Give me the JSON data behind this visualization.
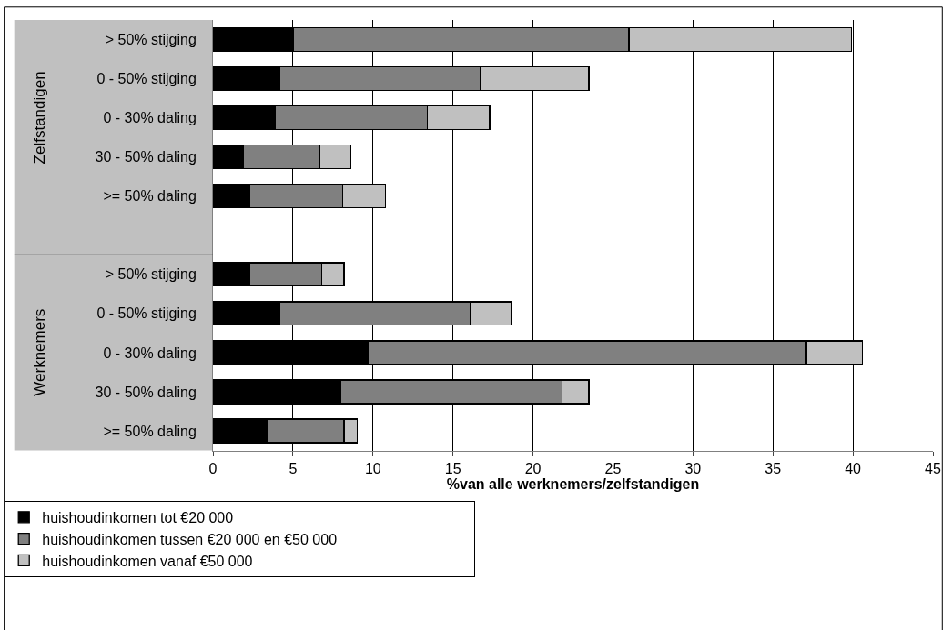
{
  "chart_data": {
    "type": "bar",
    "orientation": "horizontal",
    "stacked": true,
    "categories": [
      "> 50% stijging",
      "0 - 50% stijging",
      "0 - 30% daling",
      "30 - 50% daling",
      ">= 50% daling",
      null,
      "> 50% stijging",
      "0 - 50% stijging",
      "0 - 30% daling",
      "30 - 50% daling",
      ">= 50% daling"
    ],
    "series": [
      {
        "name": "huishoudinkomen tot €20 000",
        "color": "#000000",
        "values": [
          5.0,
          4.2,
          3.9,
          1.9,
          2.3,
          null,
          2.3,
          4.2,
          9.7,
          8.0,
          3.4
        ]
      },
      {
        "name": "huishoudinkomen tussen €20 000 en €50 000",
        "color": "#808080",
        "values": [
          21.0,
          12.5,
          9.5,
          4.8,
          5.8,
          null,
          4.5,
          11.9,
          27.4,
          13.8,
          4.8
        ]
      },
      {
        "name": "huishoudinkomen vanaf €50 000",
        "color": "#c0c0c0",
        "values": [
          13.9,
          6.8,
          3.9,
          1.9,
          2.7,
          null,
          1.4,
          2.6,
          3.5,
          1.7,
          0.8
        ]
      }
    ],
    "xlim": [
      0,
      45
    ],
    "xticks": [
      0,
      5,
      10,
      15,
      20,
      25,
      30,
      35,
      40,
      45
    ],
    "xlabel": "%van alle werknemers/zelfstandigen",
    "annotations": [
      "Zelfstandigen",
      "Werknemers"
    ],
    "grid": "x",
    "legend": "bottom"
  }
}
